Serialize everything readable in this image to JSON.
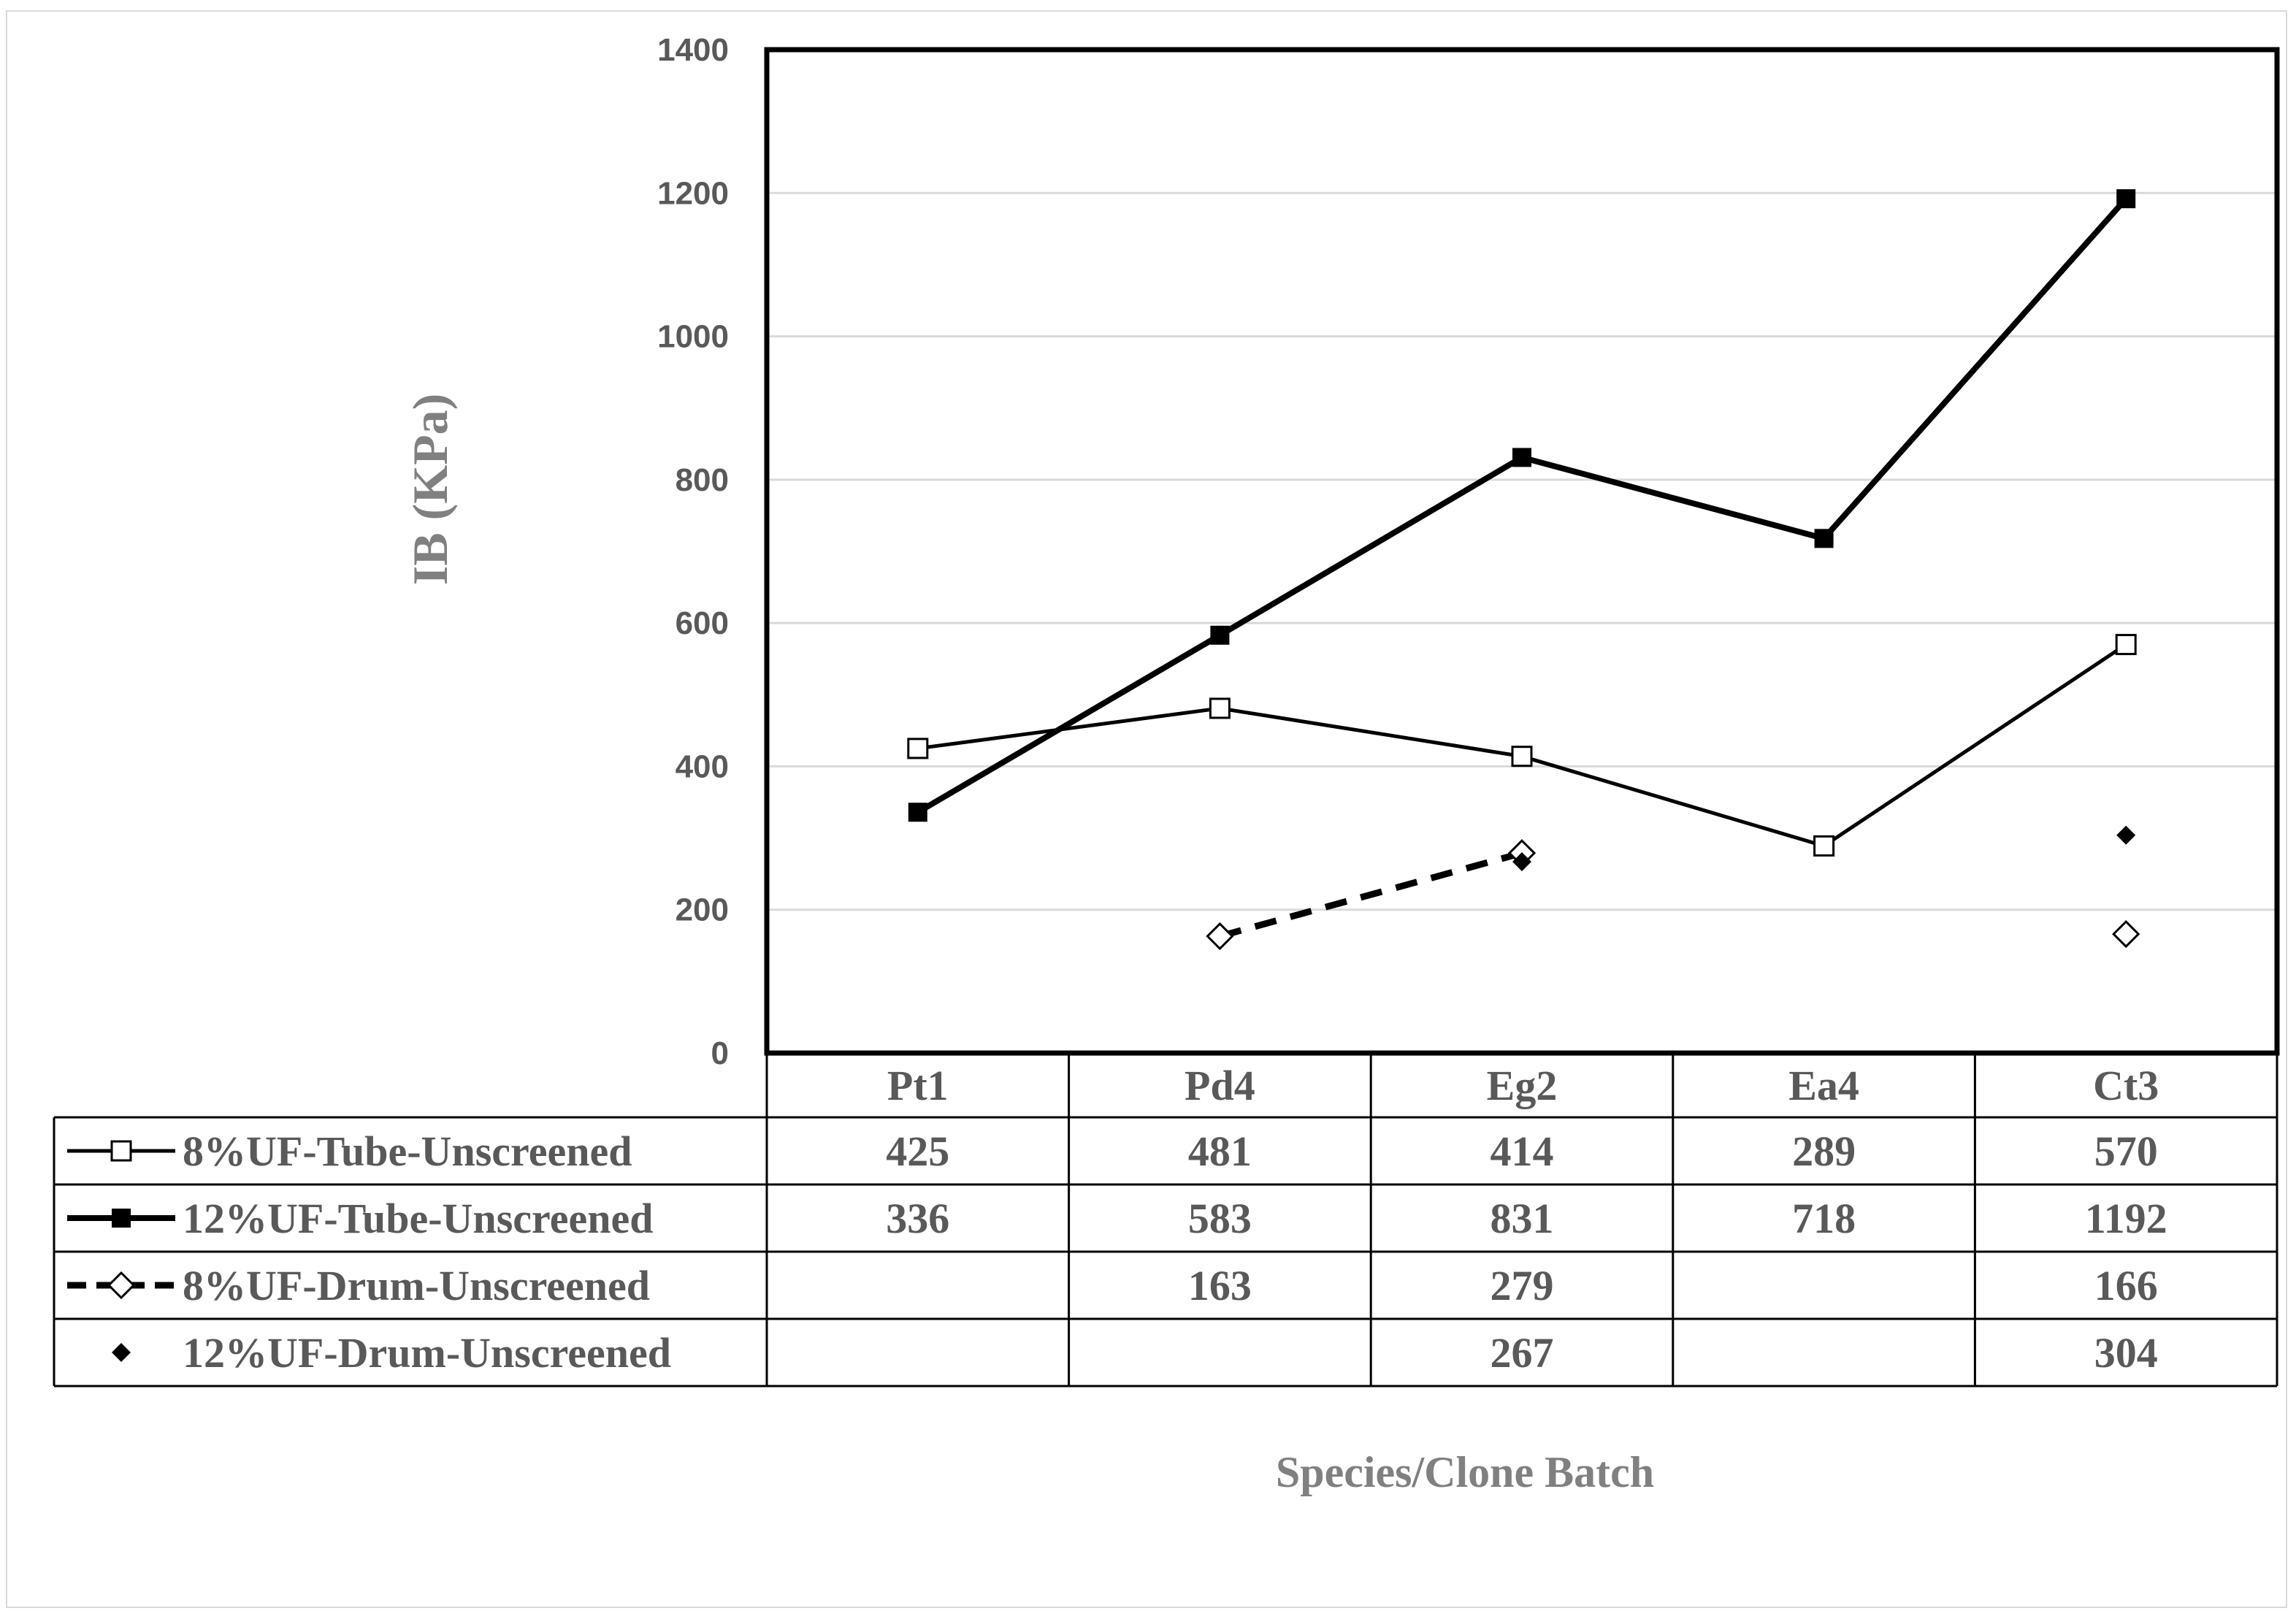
{
  "chart_data": {
    "type": "line",
    "title": "",
    "xlabel": "Species/Clone Batch",
    "ylabel": "IB (KPa)",
    "ylim": [
      0,
      1400
    ],
    "yticks": [
      0,
      200,
      400,
      600,
      800,
      1000,
      1200,
      1400
    ],
    "grid": true,
    "legend": "data-table-left",
    "categories": [
      "Pt1",
      "Pd4",
      "Eg2",
      "Ea4",
      "Ct3"
    ],
    "series": [
      {
        "name": "8%UF-Tube-Unscreened",
        "values": [
          425,
          481,
          414,
          289,
          570
        ],
        "line": "solid-thin",
        "marker": "square-open"
      },
      {
        "name": "12%UF-Tube-Unscreened",
        "values": [
          336,
          583,
          831,
          718,
          1192
        ],
        "line": "solid-thick",
        "marker": "square-filled"
      },
      {
        "name": "8%UF-Drum-Unscreened",
        "values": [
          null,
          163,
          279,
          null,
          166
        ],
        "line": "dashed",
        "marker": "diamond-open"
      },
      {
        "name": "12%UF-Drum-Unscreened",
        "values": [
          null,
          null,
          267,
          null,
          304
        ],
        "line": "none",
        "marker": "diamond-filled"
      }
    ],
    "colors": {
      "line": "#000000",
      "grid": "#d9d9d9",
      "text": "#595959",
      "axis_title": "#808080"
    }
  }
}
